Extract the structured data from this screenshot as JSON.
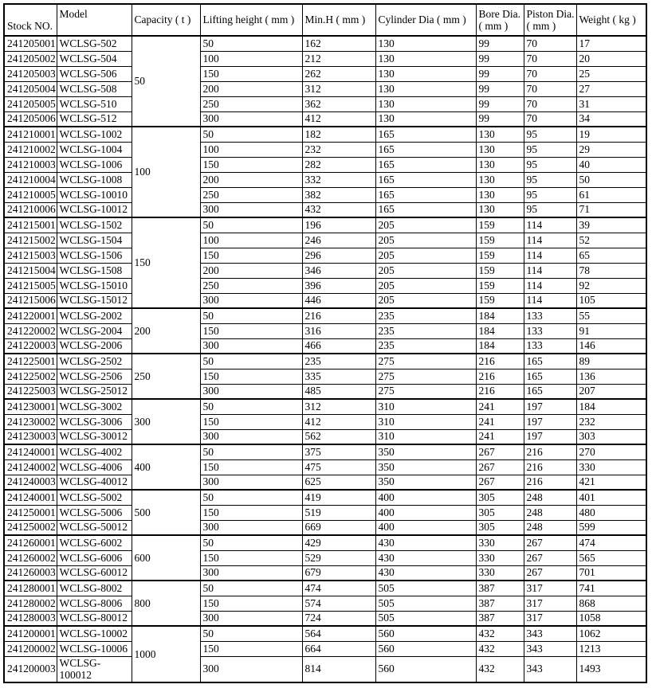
{
  "table": {
    "headers": [
      {
        "id": "stock",
        "lines": [
          "Stock NO."
        ]
      },
      {
        "id": "model",
        "lines": [
          "Model"
        ]
      },
      {
        "id": "capacity",
        "lines": [
          "Capacity ( t )"
        ]
      },
      {
        "id": "lifting",
        "lines": [
          "Lifting height ( mm )"
        ]
      },
      {
        "id": "minh",
        "lines": [
          "Min.H ( mm )"
        ]
      },
      {
        "id": "cylinder",
        "lines": [
          "Cylinder Dia ( mm )"
        ]
      },
      {
        "id": "bore",
        "lines": [
          "Bore Dia.",
          "( mm )"
        ]
      },
      {
        "id": "piston",
        "lines": [
          "Piston Dia.",
          "( mm )"
        ]
      },
      {
        "id": "weight",
        "lines": [
          "Weight ( kg )"
        ]
      }
    ],
    "groups": [
      {
        "capacity": "50",
        "rows": [
          {
            "stock": "241205001",
            "model": "WCLSG-502",
            "lifting_height": "50",
            "min_h": "162",
            "cylinder_dia": "130",
            "bore_dia": "99",
            "piston_dia": "70",
            "weight": "17"
          },
          {
            "stock": "241205002",
            "model": "WCLSG-504",
            "lifting_height": "100",
            "min_h": "212",
            "cylinder_dia": "130",
            "bore_dia": "99",
            "piston_dia": "70",
            "weight": "20"
          },
          {
            "stock": "241205003",
            "model": "WCLSG-506",
            "lifting_height": "150",
            "min_h": "262",
            "cylinder_dia": "130",
            "bore_dia": "99",
            "piston_dia": "70",
            "weight": "25"
          },
          {
            "stock": "241205004",
            "model": "WCLSG-508",
            "lifting_height": "200",
            "min_h": "312",
            "cylinder_dia": "130",
            "bore_dia": "99",
            "piston_dia": "70",
            "weight": "27"
          },
          {
            "stock": "241205005",
            "model": "WCLSG-510",
            "lifting_height": "250",
            "min_h": "362",
            "cylinder_dia": "130",
            "bore_dia": "99",
            "piston_dia": "70",
            "weight": "31"
          },
          {
            "stock": "241205006",
            "model": "WCLSG-512",
            "lifting_height": "300",
            "min_h": "412",
            "cylinder_dia": "130",
            "bore_dia": "99",
            "piston_dia": "70",
            "weight": "34"
          }
        ]
      },
      {
        "capacity": "100",
        "rows": [
          {
            "stock": "241210001",
            "model": "WCLSG-1002",
            "lifting_height": "50",
            "min_h": "182",
            "cylinder_dia": "165",
            "bore_dia": "130",
            "piston_dia": "95",
            "weight": "19"
          },
          {
            "stock": "241210002",
            "model": "WCLSG-1004",
            "lifting_height": "100",
            "min_h": "232",
            "cylinder_dia": "165",
            "bore_dia": "130",
            "piston_dia": "95",
            "weight": "29"
          },
          {
            "stock": "241210003",
            "model": "WCLSG-1006",
            "lifting_height": "150",
            "min_h": "282",
            "cylinder_dia": "165",
            "bore_dia": "130",
            "piston_dia": "95",
            "weight": "40"
          },
          {
            "stock": "241210004",
            "model": "WCLSG-1008",
            "lifting_height": "200",
            "min_h": "332",
            "cylinder_dia": "165",
            "bore_dia": "130",
            "piston_dia": "95",
            "weight": "50"
          },
          {
            "stock": "241210005",
            "model": "WCLSG-10010",
            "lifting_height": "250",
            "min_h": "382",
            "cylinder_dia": "165",
            "bore_dia": "130",
            "piston_dia": "95",
            "weight": "61"
          },
          {
            "stock": "241210006",
            "model": "WCLSG-10012",
            "lifting_height": "300",
            "min_h": "432",
            "cylinder_dia": "165",
            "bore_dia": "130",
            "piston_dia": "95",
            "weight": "71"
          }
        ]
      },
      {
        "capacity": "150",
        "rows": [
          {
            "stock": "241215001",
            "model": "WCLSG-1502",
            "lifting_height": "50",
            "min_h": "196",
            "cylinder_dia": "205",
            "bore_dia": "159",
            "piston_dia": "114",
            "weight": "39"
          },
          {
            "stock": "241215002",
            "model": "WCLSG-1504",
            "lifting_height": "100",
            "min_h": "246",
            "cylinder_dia": "205",
            "bore_dia": "159",
            "piston_dia": "114",
            "weight": "52"
          },
          {
            "stock": "241215003",
            "model": "WCLSG-1506",
            "lifting_height": "150",
            "min_h": "296",
            "cylinder_dia": "205",
            "bore_dia": "159",
            "piston_dia": "114",
            "weight": "65"
          },
          {
            "stock": "241215004",
            "model": "WCLSG-1508",
            "lifting_height": "200",
            "min_h": "346",
            "cylinder_dia": "205",
            "bore_dia": "159",
            "piston_dia": "114",
            "weight": "78"
          },
          {
            "stock": "241215005",
            "model": "WCLSG-15010",
            "lifting_height": "250",
            "min_h": "396",
            "cylinder_dia": "205",
            "bore_dia": "159",
            "piston_dia": "114",
            "weight": "92"
          },
          {
            "stock": "241215006",
            "model": "WCLSG-15012",
            "lifting_height": "300",
            "min_h": "446",
            "cylinder_dia": "205",
            "bore_dia": "159",
            "piston_dia": "114",
            "weight": "105"
          }
        ]
      },
      {
        "capacity": "200",
        "rows": [
          {
            "stock": "241220001",
            "model": "WCLSG-2002",
            "lifting_height": "50",
            "min_h": "216",
            "cylinder_dia": "235",
            "bore_dia": "184",
            "piston_dia": "133",
            "weight": "55"
          },
          {
            "stock": "241220002",
            "model": "WCLSG-2004",
            "lifting_height": "150",
            "min_h": "316",
            "cylinder_dia": "235",
            "bore_dia": "184",
            "piston_dia": "133",
            "weight": "91"
          },
          {
            "stock": "241220003",
            "model": "WCLSG-2006",
            "lifting_height": "300",
            "min_h": "466",
            "cylinder_dia": "235",
            "bore_dia": "184",
            "piston_dia": "133",
            "weight": "146"
          }
        ]
      },
      {
        "capacity": "250",
        "rows": [
          {
            "stock": "241225001",
            "model": "WCLSG-2502",
            "lifting_height": "50",
            "min_h": "235",
            "cylinder_dia": "275",
            "bore_dia": "216",
            "piston_dia": "165",
            "weight": "89"
          },
          {
            "stock": "241225002",
            "model": "WCLSG-2506",
            "lifting_height": "150",
            "min_h": "335",
            "cylinder_dia": "275",
            "bore_dia": "216",
            "piston_dia": "165",
            "weight": "136"
          },
          {
            "stock": "241225003",
            "model": "WCLSG-25012",
            "lifting_height": "300",
            "min_h": "485",
            "cylinder_dia": "275",
            "bore_dia": "216",
            "piston_dia": "165",
            "weight": "207"
          }
        ]
      },
      {
        "capacity": "300",
        "rows": [
          {
            "stock": "241230001",
            "model": "WCLSG-3002",
            "lifting_height": "50",
            "min_h": "312",
            "cylinder_dia": "310",
            "bore_dia": "241",
            "piston_dia": "197",
            "weight": "184"
          },
          {
            "stock": "241230002",
            "model": "WCLSG-3006",
            "lifting_height": "150",
            "min_h": "412",
            "cylinder_dia": "310",
            "bore_dia": "241",
            "piston_dia": "197",
            "weight": "232"
          },
          {
            "stock": "241230003",
            "model": "WCLSG-30012",
            "lifting_height": "300",
            "min_h": "562",
            "cylinder_dia": "310",
            "bore_dia": "241",
            "piston_dia": "197",
            "weight": "303"
          }
        ]
      },
      {
        "capacity": "400",
        "rows": [
          {
            "stock": "241240001",
            "model": "WCLSG-4002",
            "lifting_height": "50",
            "min_h": "375",
            "cylinder_dia": "350",
            "bore_dia": "267",
            "piston_dia": "216",
            "weight": "270"
          },
          {
            "stock": "241240002",
            "model": "WCLSG-4006",
            "lifting_height": "150",
            "min_h": "475",
            "cylinder_dia": "350",
            "bore_dia": "267",
            "piston_dia": "216",
            "weight": "330"
          },
          {
            "stock": "241240003",
            "model": "WCLSG-40012",
            "lifting_height": "300",
            "min_h": "625",
            "cylinder_dia": "350",
            "bore_dia": "267",
            "piston_dia": "216",
            "weight": "421"
          }
        ]
      },
      {
        "capacity": "500",
        "rows": [
          {
            "stock": "241240001",
            "model": "WCLSG-5002",
            "lifting_height": "50",
            "min_h": "419",
            "cylinder_dia": "400",
            "bore_dia": "305",
            "piston_dia": "248",
            "weight": "401"
          },
          {
            "stock": "241250001",
            "model": "WCLSG-5006",
            "lifting_height": "150",
            "min_h": "519",
            "cylinder_dia": "400",
            "bore_dia": "305",
            "piston_dia": "248",
            "weight": "480"
          },
          {
            "stock": "241250002",
            "model": "WCLSG-50012",
            "lifting_height": "300",
            "min_h": "669",
            "cylinder_dia": "400",
            "bore_dia": "305",
            "piston_dia": "248",
            "weight": "599"
          }
        ]
      },
      {
        "capacity": "600",
        "rows": [
          {
            "stock": "241260001",
            "model": "WCLSG-6002",
            "lifting_height": "50",
            "min_h": "429",
            "cylinder_dia": "430",
            "bore_dia": "330",
            "piston_dia": "267",
            "weight": "474"
          },
          {
            "stock": "241260002",
            "model": "WCLSG-6006",
            "lifting_height": "150",
            "min_h": "529",
            "cylinder_dia": "430",
            "bore_dia": "330",
            "piston_dia": "267",
            "weight": "565"
          },
          {
            "stock": "241260003",
            "model": "WCLSG-60012",
            "lifting_height": "300",
            "min_h": "679",
            "cylinder_dia": "430",
            "bore_dia": "330",
            "piston_dia": "267",
            "weight": "701"
          }
        ]
      },
      {
        "capacity": "800",
        "rows": [
          {
            "stock": "241280001",
            "model": "WCLSG-8002",
            "lifting_height": "50",
            "min_h": "474",
            "cylinder_dia": "505",
            "bore_dia": "387",
            "piston_dia": "317",
            "weight": "741"
          },
          {
            "stock": "241280002",
            "model": "WCLSG-8006",
            "lifting_height": "150",
            "min_h": "574",
            "cylinder_dia": "505",
            "bore_dia": "387",
            "piston_dia": "317",
            "weight": "868"
          },
          {
            "stock": "241280003",
            "model": "WCLSG-80012",
            "lifting_height": "300",
            "min_h": "724",
            "cylinder_dia": "505",
            "bore_dia": "387",
            "piston_dia": "317",
            "weight": "1058"
          }
        ]
      },
      {
        "capacity": "1000",
        "rows": [
          {
            "stock": "241200001",
            "model": "WCLSG-10002",
            "lifting_height": "50",
            "min_h": "564",
            "cylinder_dia": "560",
            "bore_dia": "432",
            "piston_dia": "343",
            "weight": "1062"
          },
          {
            "stock": "241200002",
            "model": "WCLSG-10006",
            "lifting_height": "150",
            "min_h": "664",
            "cylinder_dia": "560",
            "bore_dia": "432",
            "piston_dia": "343",
            "weight": "1213"
          },
          {
            "stock": "241200003",
            "model": "WCLSG-100012",
            "lifting_height": "300",
            "min_h": "814",
            "cylinder_dia": "560",
            "bore_dia": "432",
            "piston_dia": "343",
            "weight": "1493"
          }
        ]
      }
    ]
  }
}
